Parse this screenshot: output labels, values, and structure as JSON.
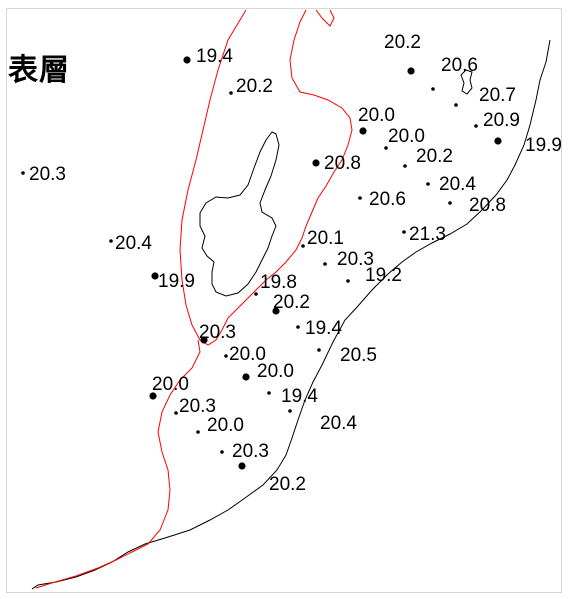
{
  "title": "表層",
  "colors": {
    "coastline": "#000000",
    "isoline": "#ff0000",
    "station": "#000000",
    "background": "#ffffff"
  },
  "stations": [
    {
      "value": "19.4",
      "big": true
    },
    {
      "value": "20.2",
      "big": false
    },
    {
      "value": "20.3",
      "big": false
    },
    {
      "value": "20.4",
      "big": false
    },
    {
      "value": "19.9",
      "big": true
    },
    {
      "value": "19.8",
      "big": false
    },
    {
      "value": "20.2",
      "big": true
    },
    {
      "value": "20.3",
      "big": true
    },
    {
      "value": "20.0",
      "big": false
    },
    {
      "value": "20.0",
      "big": true
    },
    {
      "value": "19.4",
      "big": false
    },
    {
      "value": "20.0",
      "big": true
    },
    {
      "value": "20.3",
      "big": false
    },
    {
      "value": "20.0",
      "big": false
    },
    {
      "value": "20.3",
      "big": false
    },
    {
      "value": "20.2",
      "big": true
    },
    {
      "value": "20.1",
      "big": false
    },
    {
      "value": "20.3",
      "big": false
    },
    {
      "value": "19.2",
      "big": false
    },
    {
      "value": "19.4",
      "big": false
    },
    {
      "value": "20.5",
      "big": false
    },
    {
      "value": "20.4",
      "big": false
    },
    {
      "value": "20.2",
      "big": true
    },
    {
      "value": "20.6",
      "big": false
    },
    {
      "value": "20.7",
      "big": false
    },
    {
      "value": "20.0",
      "big": true
    },
    {
      "value": "20.9",
      "big": false
    },
    {
      "value": "19.9",
      "big": true
    },
    {
      "value": "20.0",
      "big": false
    },
    {
      "value": "20.8",
      "big": true
    },
    {
      "value": "20.2",
      "big": false
    },
    {
      "value": "20.6",
      "big": false
    },
    {
      "value": "20.4",
      "big": false
    },
    {
      "value": "20.8",
      "big": false
    },
    {
      "value": "21.3",
      "big": false
    }
  ]
}
